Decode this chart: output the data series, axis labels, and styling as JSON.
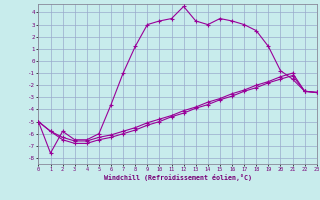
{
  "xlabel": "Windchill (Refroidissement éolien,°C)",
  "bg_color": "#c8ecec",
  "line_color": "#990099",
  "grid_color": "#99aacc",
  "xlim": [
    0,
    23
  ],
  "ylim": [
    -8.5,
    4.7
  ],
  "xticks": [
    0,
    1,
    2,
    3,
    4,
    5,
    6,
    7,
    8,
    9,
    10,
    11,
    12,
    13,
    14,
    15,
    16,
    17,
    18,
    19,
    20,
    21,
    22,
    23
  ],
  "yticks": [
    -8,
    -7,
    -6,
    -5,
    -4,
    -3,
    -2,
    -1,
    0,
    1,
    2,
    3,
    4
  ],
  "line1_x": [
    0,
    1,
    2,
    3,
    4,
    5,
    6,
    7,
    8,
    9,
    10,
    11,
    12,
    13,
    14,
    15,
    16,
    17,
    18,
    19,
    20,
    21,
    22,
    23
  ],
  "line1_y": [
    -5.0,
    -7.6,
    -5.8,
    -6.5,
    -6.5,
    -6.0,
    -3.6,
    -1.0,
    1.2,
    3.0,
    3.3,
    3.5,
    4.5,
    3.3,
    3.0,
    3.5,
    3.3,
    3.0,
    2.5,
    1.2,
    -0.8,
    -1.5,
    -2.5,
    -2.6
  ],
  "line2_x": [
    0,
    1,
    2,
    3,
    4,
    5,
    6,
    7,
    8,
    9,
    10,
    11,
    12,
    13,
    14,
    15,
    16,
    17,
    18,
    19,
    20,
    21,
    22,
    23
  ],
  "line2_y": [
    -5.0,
    -5.8,
    -6.3,
    -6.6,
    -6.6,
    -6.3,
    -6.1,
    -5.8,
    -5.5,
    -5.1,
    -4.8,
    -4.5,
    -4.1,
    -3.8,
    -3.4,
    -3.1,
    -2.7,
    -2.4,
    -2.0,
    -1.7,
    -1.3,
    -1.0,
    -2.5,
    -2.6
  ],
  "line3_x": [
    0,
    1,
    2,
    3,
    4,
    5,
    6,
    7,
    8,
    9,
    10,
    11,
    12,
    13,
    14,
    15,
    16,
    17,
    18,
    19,
    20,
    21,
    22,
    23
  ],
  "line3_y": [
    -5.0,
    -5.8,
    -6.5,
    -6.8,
    -6.8,
    -6.5,
    -6.3,
    -6.0,
    -5.7,
    -5.3,
    -5.0,
    -4.6,
    -4.3,
    -3.9,
    -3.6,
    -3.2,
    -2.9,
    -2.5,
    -2.2,
    -1.8,
    -1.5,
    -1.2,
    -2.5,
    -2.6
  ]
}
